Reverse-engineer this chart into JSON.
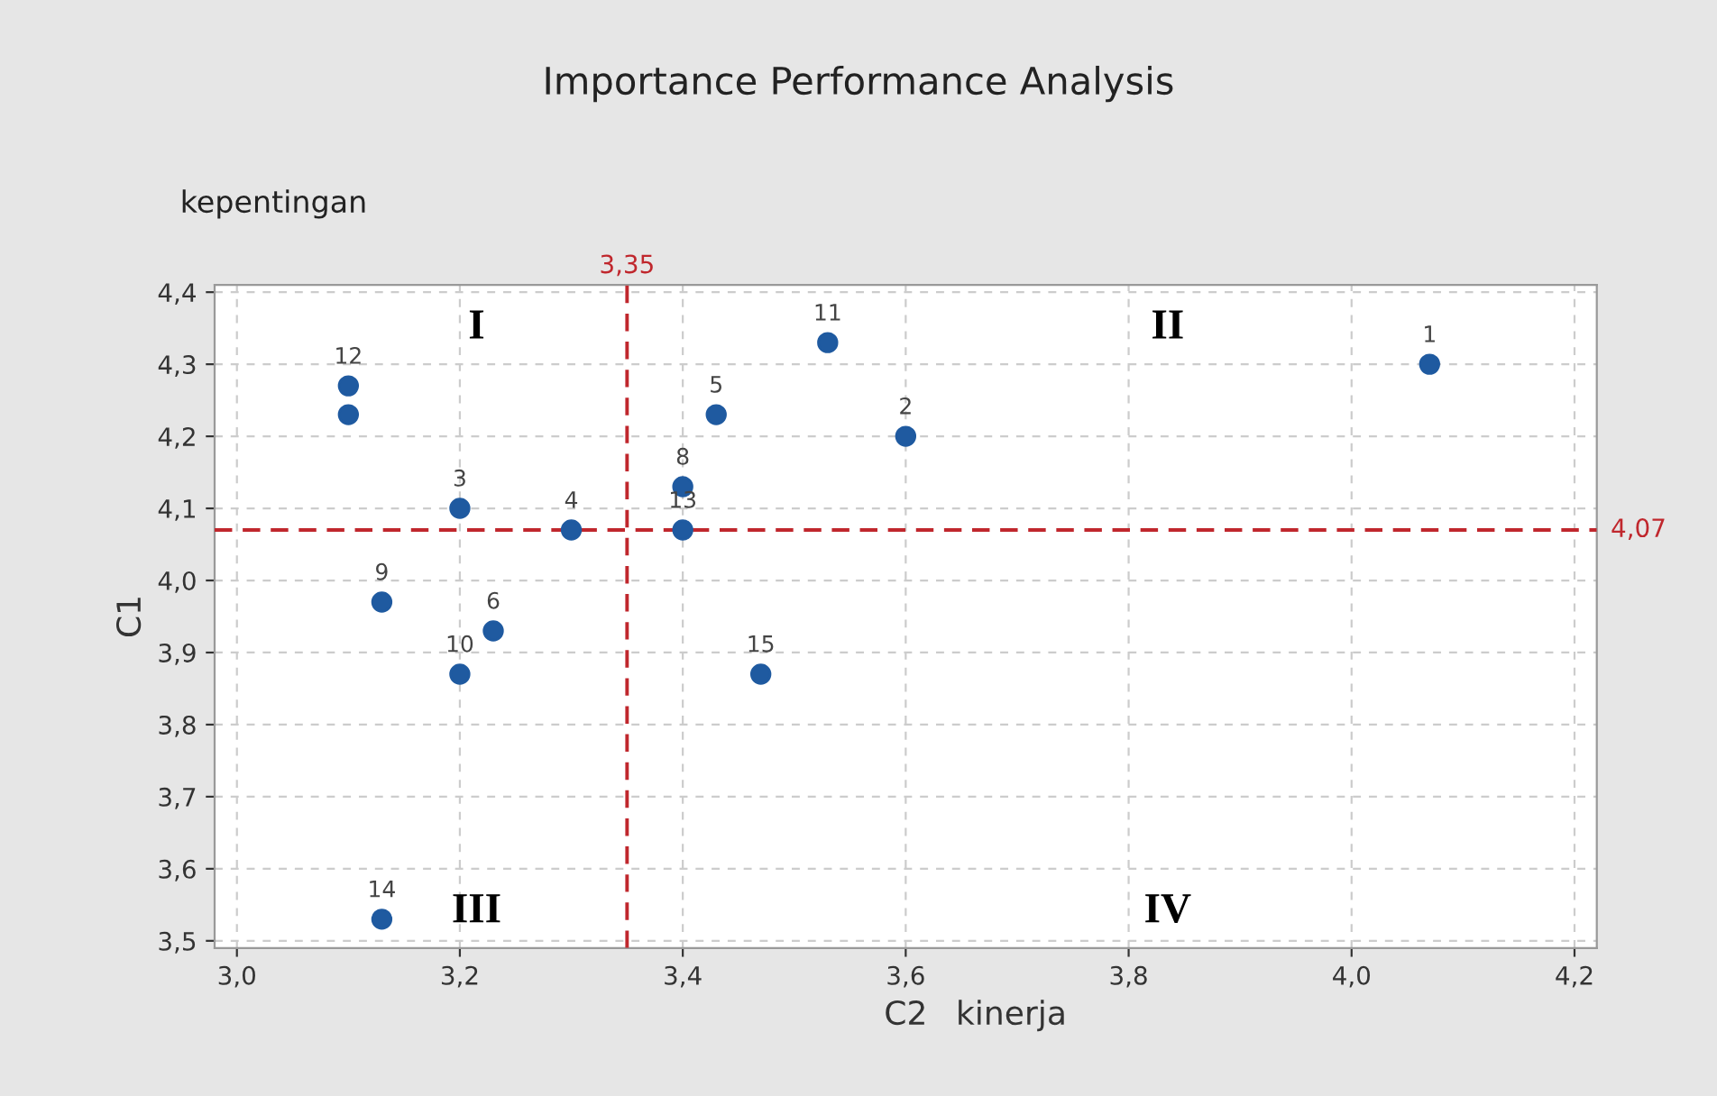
{
  "chart_data": {
    "type": "scatter",
    "title": "Importance Performance Analysis",
    "xlabel": "C2",
    "ylabel": "C1",
    "annotations": [
      "kepentingan",
      "kinerja",
      "I",
      "II",
      "III",
      "IV",
      {
        "text": "1",
        "x": 4.07,
        "y": 4.3
      },
      {
        "text": "2",
        "x": 3.6,
        "y": 4.2
      },
      {
        "text": "3",
        "x": 3.2,
        "y": 4.1
      },
      {
        "text": "4",
        "x": 3.3,
        "y": 4.07
      },
      {
        "text": "5",
        "x": 3.43,
        "y": 4.23
      },
      {
        "text": "6",
        "x": 3.23,
        "y": 3.93
      },
      {
        "text": "8",
        "x": 3.4,
        "y": 4.13
      },
      {
        "text": "9",
        "x": 3.13,
        "y": 3.97
      },
      {
        "text": "10",
        "x": 3.2,
        "y": 3.87
      },
      {
        "text": "11",
        "x": 3.53,
        "y": 4.33
      },
      {
        "text": "12",
        "x": 3.1,
        "y": 4.27
      },
      {
        "text": "13",
        "x": 3.4,
        "y": 4.07
      },
      {
        "text": "14",
        "x": 3.13,
        "y": 3.53
      },
      {
        "text": "15",
        "x": 3.47,
        "y": 3.87
      }
    ],
    "series": [
      {
        "color": "#1f5aa0",
        "x": [
          4.07,
          3.6,
          3.2,
          3.3,
          3.43,
          3.23,
          3.1,
          3.4,
          3.13,
          3.2,
          3.53,
          3.1,
          3.4,
          3.13,
          3.47
        ],
        "values": [
          4.3,
          4.2,
          4.1,
          4.07,
          4.23,
          3.93,
          4.23,
          4.13,
          3.97,
          3.87,
          4.33,
          4.27,
          4.07,
          3.53,
          3.87
        ]
      }
    ],
    "marker": "circle",
    "xlim": [
      2.98,
      4.22
    ],
    "ylim": [
      3.49,
      4.41
    ],
    "xticks": [
      {
        "value": 3.0,
        "label": "3,0"
      },
      {
        "value": 3.2,
        "label": "3,2"
      },
      {
        "value": 3.4,
        "label": "3,4"
      },
      {
        "value": 3.6,
        "label": "3,6"
      },
      {
        "value": 3.8,
        "label": "3,8"
      },
      {
        "value": 4.0,
        "label": "4,0"
      },
      {
        "value": 4.2,
        "label": "4,2"
      }
    ],
    "yticks": [
      {
        "value": 3.5,
        "label": "3,5"
      },
      {
        "value": 3.6,
        "label": "3,6"
      },
      {
        "value": 3.7,
        "label": "3,7"
      },
      {
        "value": 3.8,
        "label": "3,8"
      },
      {
        "value": 3.9,
        "label": "3,9"
      },
      {
        "value": 4.0,
        "label": "4,0"
      },
      {
        "value": 4.1,
        "label": "4,1"
      },
      {
        "value": 4.2,
        "label": "4,2"
      },
      {
        "value": 4.3,
        "label": "4,3"
      },
      {
        "value": 4.4,
        "label": "4,4"
      }
    ],
    "ref_lines": [
      {
        "axis": "x",
        "value": 3.35,
        "label": "3,35",
        "color": "#c0272d",
        "line_style": "dashed"
      },
      {
        "axis": "y",
        "value": 4.07,
        "label": "4,07",
        "color": "#c0272d",
        "line_style": "dashed"
      }
    ],
    "grid": true
  }
}
